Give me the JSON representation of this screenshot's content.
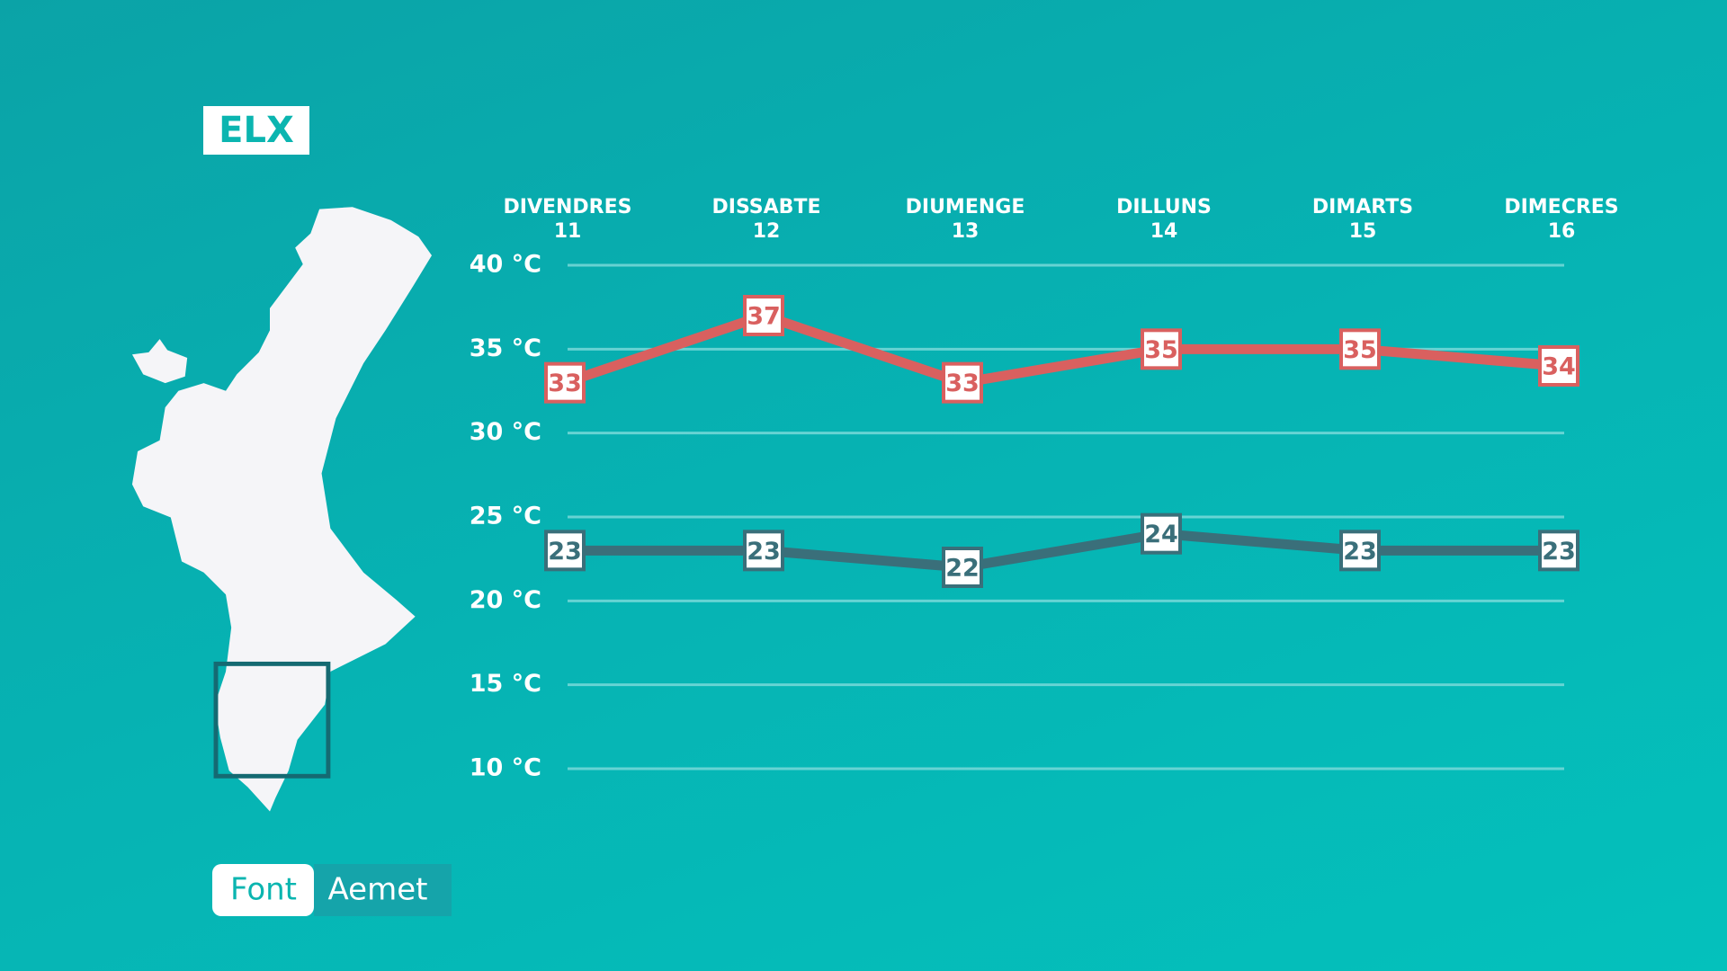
{
  "badge": "ELX",
  "source": {
    "label": "Font",
    "name": "Aemet"
  },
  "chart_data": {
    "type": "line",
    "categories": [
      "DIVENDRES",
      "DISSABTE",
      "DIUMENGE",
      "DILLUNS",
      "DIMARTS",
      "DIMECRES"
    ],
    "category_dates": [
      "11",
      "12",
      "13",
      "14",
      "15",
      "16"
    ],
    "series": [
      {
        "color": "#d9605f",
        "values": [
          33,
          37,
          33,
          35,
          35,
          34
        ]
      },
      {
        "color": "#3a6f7a",
        "values": [
          23,
          23,
          22,
          24,
          23,
          23
        ]
      }
    ],
    "ylim": [
      10,
      40
    ],
    "yticks": [
      {
        "value": 10,
        "label": "10 °C"
      },
      {
        "value": 15,
        "label": "15 °C"
      },
      {
        "value": 20,
        "label": "20 °C"
      },
      {
        "value": 25,
        "label": "25 °C"
      },
      {
        "value": 30,
        "label": "30 °C"
      },
      {
        "value": 35,
        "label": "35 °C"
      },
      {
        "value": 40,
        "label": "40 °C"
      }
    ],
    "grid": true
  }
}
